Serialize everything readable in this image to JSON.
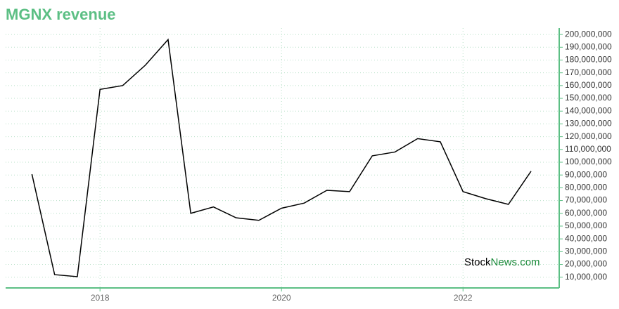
{
  "chart_data": {
    "type": "line",
    "title": "MGNX revenue",
    "x": [
      2017.25,
      2017.5,
      2017.75,
      2018,
      2018.25,
      2018.5,
      2018.75,
      2019,
      2019.25,
      2019.5,
      2019.75,
      2020,
      2020.25,
      2020.5,
      2020.75,
      2021,
      2021.25,
      2021.5,
      2021.75,
      2022,
      2022.25,
      2022.5,
      2022.75
    ],
    "series": [
      {
        "name": "MGNX revenue",
        "color": "#000000",
        "values": [
          90600000,
          12000000,
          10400000,
          157000000,
          160000000,
          176000000,
          196000000,
          60000000,
          65000000,
          56500000,
          54500000,
          64000000,
          68000000,
          78000000,
          77000000,
          105000000,
          108000000,
          118500000,
          116000000,
          77000000,
          71500000,
          67000000,
          93000000
        ]
      }
    ],
    "xlim": [
      2016.96,
      2023.06
    ],
    "xticks": [
      2018,
      2020,
      2022
    ],
    "ylim": [
      1600000,
      205000000
    ],
    "yticks": [
      {
        "value": 10000000,
        "label": "10,000,000"
      },
      {
        "value": 20000000,
        "label": "20,000,000"
      },
      {
        "value": 30000000,
        "label": "30,000,000"
      },
      {
        "value": 40000000,
        "label": "40,000,000"
      },
      {
        "value": 50000000,
        "label": "50,000,000"
      },
      {
        "value": 60000000,
        "label": "60,000,000"
      },
      {
        "value": 70000000,
        "label": "70,000,000"
      },
      {
        "value": 80000000,
        "label": "80,000,000"
      },
      {
        "value": 90000000,
        "label": "90,000,000"
      },
      {
        "value": 100000000,
        "label": "100,000,000"
      },
      {
        "value": 110000000,
        "label": "110,000,000"
      },
      {
        "value": 120000000,
        "label": "120,000,000"
      },
      {
        "value": 130000000,
        "label": "130,000,000"
      },
      {
        "value": 140000000,
        "label": "140,000,000"
      },
      {
        "value": 150000000,
        "label": "150,000,000"
      },
      {
        "value": 160000000,
        "label": "160,000,000"
      },
      {
        "value": 170000000,
        "label": "170,000,000"
      },
      {
        "value": 180000000,
        "label": "180,000,000"
      },
      {
        "value": 190000000,
        "label": "190,000,000"
      },
      {
        "value": 200000000,
        "label": "200,000,000"
      }
    ],
    "grid": true,
    "axis_color": "#5cbf84",
    "brand": [
      "Stock",
      "News.com"
    ]
  }
}
